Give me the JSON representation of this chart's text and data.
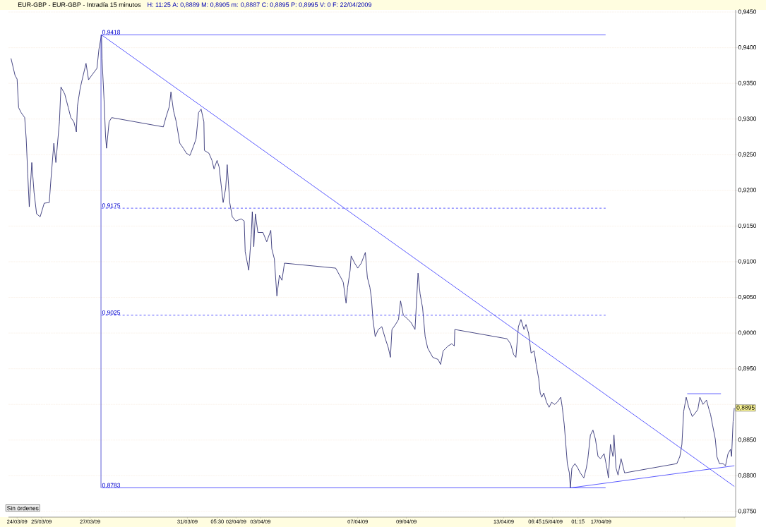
{
  "chart_data": {
    "type": "line",
    "title": "EUR-GBP - EUR-GBP - Intradía 15 minutos",
    "subtitle": "H: 11:25  A: 0,8889  M: 0,8905  m: 0,8887  C: 0,8895  P: 0,8995  V: 0  F: 22/04/2009",
    "xlim": [
      "2009-03-23T15:30",
      "2009-04-22T12:45"
    ],
    "ylim": [
      0.8742,
      0.9453
    ],
    "xticks": [
      {
        "value": "2009-03-24",
        "label": "24/03/09"
      },
      {
        "value": "2009-03-25",
        "label": "25/03/09"
      },
      {
        "value": "2009-03-27",
        "label": "27/03/09"
      },
      {
        "value": "2009-03-31",
        "label": "31/03/09"
      },
      {
        "value": "2009-04-01T05:30",
        "label": "05:30"
      },
      {
        "value": "2009-04-02",
        "label": "02/04/09"
      },
      {
        "value": "2009-04-03",
        "label": "03/04/09"
      },
      {
        "value": "2009-04-07",
        "label": "07/04/09"
      },
      {
        "value": "2009-04-09",
        "label": "09/04/09"
      },
      {
        "value": "2009-04-13",
        "label": "13/04/09"
      },
      {
        "value": "2009-04-14T06:45",
        "label": "06:45"
      },
      {
        "value": "2009-04-15",
        "label": "15/04/09"
      },
      {
        "value": "2009-04-16T01:15",
        "label": "01:15"
      },
      {
        "value": "2009-04-17",
        "label": "17/04/09"
      },
      {
        "value": "2009-04-20T10:00",
        "label": null
      }
    ],
    "yticks": [
      {
        "value": 0.875,
        "label": "0,8750"
      },
      {
        "value": 0.88,
        "label": "0,8800"
      },
      {
        "value": 0.885,
        "label": "0,8850"
      },
      {
        "value": 0.89,
        "label": null
      },
      {
        "value": 0.895,
        "label": "0,8950"
      },
      {
        "value": 0.9,
        "label": "0,9000"
      },
      {
        "value": 0.905,
        "label": "0,9050"
      },
      {
        "value": 0.91,
        "label": "0,9100"
      },
      {
        "value": 0.915,
        "label": "0,9150"
      },
      {
        "value": 0.92,
        "label": "0,9200"
      },
      {
        "value": 0.925,
        "label": "0,9250"
      },
      {
        "value": 0.93,
        "label": "0,9300"
      },
      {
        "value": 0.935,
        "label": "0,9350"
      },
      {
        "value": 0.94,
        "label": "0,9400"
      },
      {
        "value": 0.945,
        "label": "0,9450"
      }
    ],
    "grid": "y",
    "marker": "none",
    "series": [
      {
        "color": "#1a1a66",
        "x": [
          "2009-03-23T18:00",
          "2009-03-23T22:00",
          "2009-03-24T00:00",
          "2009-03-24T01:30",
          "2009-03-24T04:00",
          "2009-03-24T07:30",
          "2009-03-24T09:00",
          "2009-03-24T10:30",
          "2009-03-24T12:00",
          "2009-03-24T14:30",
          "2009-03-24T16:45",
          "2009-03-24T19:15",
          "2009-03-24T22:45",
          "2009-03-25T02:45",
          "2009-03-25T07:45",
          "2009-03-25T09:15",
          "2009-03-25T12:15",
          "2009-03-25T14:15",
          "2009-03-25T17:45",
          "2009-03-25T19:15",
          "2009-03-25T23:00",
          "2009-03-26T02:30",
          "2009-03-26T05:00",
          "2009-03-26T08:00",
          "2009-03-26T10:30",
          "2009-03-26T11:30",
          "2009-03-26T14:00",
          "2009-03-26T15:30",
          "2009-03-26T20:00",
          "2009-03-26T22:30",
          "2009-03-27T01:30",
          "2009-03-27T06:45",
          "2009-03-27T08:45",
          "2009-03-27T11:15",
          "2009-03-27T11:45",
          "2009-03-27T13:45",
          "2009-03-27T15:15",
          "2009-03-27T16:15",
          "2009-03-27T18:45",
          "2009-03-27T21:15",
          "2009-03-30T00:15",
          "2009-03-30T02:45",
          "2009-03-30T06:15",
          "2009-03-30T07:45",
          "2009-03-30T10:15",
          "2009-03-30T13:00",
          "2009-03-30T16:30",
          "2009-03-30T20:00",
          "2009-03-30T23:00",
          "2009-03-31T02:30",
          "2009-03-31T06:00",
          "2009-03-31T08:30",
          "2009-03-31T11:00",
          "2009-03-31T13:30",
          "2009-03-31T16:15",
          "2009-03-31T16:45",
          "2009-03-31T21:15",
          "2009-04-01T00:15",
          "2009-04-01T02:15",
          "2009-04-01T05:15",
          "2009-04-01T07:15",
          "2009-04-01T11:15",
          "2009-04-01T13:45",
          "2009-04-01T15:15",
          "2009-04-01T17:45",
          "2009-04-01T20:15",
          "2009-04-01T23:45",
          "2009-04-02T05:00",
          "2009-04-02T08:00",
          "2009-04-02T09:00",
          "2009-04-02T12:30",
          "2009-04-02T15:00",
          "2009-04-02T16:00",
          "2009-04-02T17:30",
          "2009-04-02T19:00",
          "2009-04-02T21:30",
          "2009-04-03T02:30",
          "2009-04-03T06:15",
          "2009-04-03T10:15",
          "2009-04-03T11:15",
          "2009-04-03T13:45",
          "2009-04-03T16:15",
          "2009-04-03T18:45",
          "2009-04-03T21:15",
          "2009-04-03T23:45",
          "2009-04-06T02:15",
          "2009-04-06T07:15",
          "2009-04-06T09:45",
          "2009-04-06T12:30",
          "2009-04-06T14:00",
          "2009-04-06T16:30",
          "2009-04-06T17:30",
          "2009-04-06T21:00",
          "2009-04-07T00:00",
          "2009-04-07T03:30",
          "2009-04-07T07:30",
          "2009-04-07T09:30",
          "2009-04-07T12:00",
          "2009-04-07T13:30",
          "2009-04-07T15:00",
          "2009-04-07T17:15",
          "2009-04-07T20:15",
          "2009-04-07T23:45",
          "2009-04-08T03:15",
          "2009-04-08T06:15",
          "2009-04-08T08:15",
          "2009-04-08T09:45",
          "2009-04-08T13:15",
          "2009-04-08T16:15",
          "2009-04-08T18:15",
          "2009-04-08T21:00",
          "2009-04-08T23:30",
          "2009-04-09T04:30",
          "2009-04-09T08:30",
          "2009-04-09T11:30",
          "2009-04-09T13:30",
          "2009-04-09T16:00",
          "2009-04-09T18:30",
          "2009-04-09T21:00",
          "2009-04-10T02:00",
          "2009-04-10T07:15",
          "2009-04-10T09:45",
          "2009-04-10T12:15",
          "2009-04-10T17:15",
          "2009-04-10T20:45",
          "2009-04-10T23:15",
          "2009-04-10T23:45",
          "2009-04-13T03:15",
          "2009-04-13T06:45",
          "2009-04-13T09:45",
          "2009-04-13T12:00",
          "2009-04-13T14:30",
          "2009-04-13T17:00",
          "2009-04-13T20:00",
          "2009-04-13T22:00",
          "2009-04-14T00:30",
          "2009-04-14T03:00",
          "2009-04-14T06:00",
          "2009-04-14T08:00",
          "2009-04-14T10:30",
          "2009-04-14T12:00",
          "2009-04-14T13:30",
          "2009-04-14T15:30",
          "2009-04-14T18:15",
          "2009-04-14T20:45",
          "2009-04-14T23:15",
          "2009-04-15T02:15",
          "2009-04-15T04:45",
          "2009-04-15T08:15",
          "2009-04-15T09:45",
          "2009-04-15T11:45",
          "2009-04-15T13:15",
          "2009-04-15T14:45",
          "2009-04-15T16:45",
          "2009-04-15T17:45",
          "2009-04-15T19:15",
          "2009-04-15T22:15",
          "2009-04-16T01:00",
          "2009-04-16T03:30",
          "2009-04-16T07:00",
          "2009-04-16T09:30",
          "2009-04-16T11:00",
          "2009-04-16T13:30",
          "2009-04-16T16:00",
          "2009-04-16T18:30",
          "2009-04-16T21:00",
          "2009-04-16T23:30",
          "2009-04-17T03:00",
          "2009-04-17T05:45",
          "2009-04-17T07:15",
          "2009-04-17T09:15",
          "2009-04-17T11:45",
          "2009-04-17T12:45",
          "2009-04-17T14:45",
          "2009-04-17T16:45",
          "2009-04-17T19:45",
          "2009-04-17T23:15",
          "2009-04-20T02:45",
          "2009-04-20T05:45",
          "2009-04-20T07:45",
          "2009-04-20T09:30",
          "2009-04-20T12:00",
          "2009-04-20T14:30",
          "2009-04-20T18:00",
          "2009-04-20T21:00",
          "2009-04-20T23:30",
          "2009-04-21T01:30",
          "2009-04-21T04:30",
          "2009-04-21T08:00",
          "2009-04-21T10:30",
          "2009-04-21T12:00",
          "2009-04-21T14:00",
          "2009-04-21T16:45",
          "2009-04-21T18:15",
          "2009-04-21T20:45",
          "2009-04-22T00:15",
          "2009-04-22T02:45",
          "2009-04-22T05:15",
          "2009-04-22T07:45",
          "2009-04-22T08:45",
          "2009-04-22T10:15",
          "2009-04-22T11:25"
        ],
        "values": [
          0.9385,
          0.9361,
          0.9356,
          0.9316,
          0.9309,
          0.9302,
          0.9272,
          0.9223,
          0.9177,
          0.9239,
          0.9197,
          0.9167,
          0.9163,
          0.9182,
          0.9183,
          0.9213,
          0.9266,
          0.9239,
          0.9296,
          0.9345,
          0.9335,
          0.9316,
          0.9302,
          0.9296,
          0.9282,
          0.9318,
          0.9341,
          0.9351,
          0.9378,
          0.9355,
          0.9361,
          0.9371,
          0.9398,
          0.9418,
          0.9385,
          0.9328,
          0.9276,
          0.9259,
          0.9296,
          0.9302,
          0.9289,
          0.9302,
          0.9318,
          0.9338,
          0.9312,
          0.9296,
          0.9266,
          0.9259,
          0.9252,
          0.9249,
          0.9262,
          0.9272,
          0.9309,
          0.9314,
          0.9296,
          0.9256,
          0.9252,
          0.9242,
          0.923,
          0.9242,
          0.9233,
          0.9183,
          0.9203,
          0.9236,
          0.9183,
          0.9163,
          0.9157,
          0.916,
          0.9157,
          0.9114,
          0.9088,
          0.9138,
          0.917,
          0.9121,
          0.9167,
          0.9141,
          0.9141,
          0.9128,
          0.9144,
          0.9118,
          0.9104,
          0.9052,
          0.9081,
          0.9074,
          0.9098,
          0.9091,
          0.9078,
          0.9071,
          0.9042,
          0.9064,
          0.9088,
          0.9108,
          0.9098,
          0.9091,
          0.9098,
          0.9113,
          0.9078,
          0.9064,
          0.9049,
          0.9019,
          0.8995,
          0.9005,
          0.9009,
          0.8992,
          0.8979,
          0.8966,
          0.9005,
          0.9012,
          0.9019,
          0.9045,
          0.9025,
          0.9022,
          0.9015,
          0.9005,
          0.9084,
          0.9055,
          0.9035,
          0.8995,
          0.8979,
          0.8966,
          0.8963,
          0.8956,
          0.8975,
          0.8982,
          0.8985,
          0.8982,
          0.9005,
          0.8992,
          0.8985,
          0.897,
          0.8966,
          0.9009,
          0.9019,
          0.9005,
          0.9012,
          0.9,
          0.8972,
          0.8975,
          0.8956,
          0.8936,
          0.8916,
          0.891,
          0.8916,
          0.8903,
          0.8896,
          0.8903,
          0.89,
          0.8903,
          0.891,
          0.8896,
          0.8871,
          0.8844,
          0.8817,
          0.8804,
          0.8783,
          0.8811,
          0.8817,
          0.8811,
          0.8804,
          0.8797,
          0.8811,
          0.8824,
          0.8857,
          0.8864,
          0.8851,
          0.8827,
          0.8824,
          0.8831,
          0.8811,
          0.8797,
          0.8844,
          0.8827,
          0.8857,
          0.8811,
          0.8801,
          0.8824,
          0.8804,
          0.8817,
          0.8827,
          0.8844,
          0.889,
          0.891,
          0.8896,
          0.8883,
          0.8888,
          0.8893,
          0.891,
          0.89,
          0.8906,
          0.8893,
          0.8886,
          0.8871,
          0.8851,
          0.8827,
          0.8817,
          0.8817,
          0.8814,
          0.8831,
          0.8837,
          0.8827,
          0.8876,
          0.8895
        ]
      },
      {
        "color": "#3333ff",
        "x": [
          "2009-03-27T11:15",
          "2009-04-17T04:30"
        ],
        "values": [
          0.9418,
          0.9418
        ]
      },
      {
        "color": "#3333ff",
        "x": [
          "2009-03-27T11:15",
          "2009-04-17T04:30"
        ],
        "values": [
          0.9175,
          0.9175
        ],
        "line_style": "dashed"
      },
      {
        "color": "#3333ff",
        "x": [
          "2009-03-27T11:15",
          "2009-04-17T04:30"
        ],
        "values": [
          0.9025,
          0.9025
        ],
        "line_style": "dashed"
      },
      {
        "color": "#3333ff",
        "x": [
          "2009-03-27T11:15",
          "2009-04-17T04:30"
        ],
        "values": [
          0.8783,
          0.8783
        ]
      },
      {
        "color": "#3333cc",
        "x": [
          "2009-03-27T10:45",
          "2009-03-27T10:45"
        ],
        "values": [
          0.9418,
          0.8783
        ]
      },
      {
        "color": "#3333ff",
        "x": [
          "2009-03-27T11:15",
          "2009-04-22T11:30"
        ],
        "values": [
          0.9418,
          0.8785
        ]
      },
      {
        "color": "#3333ff",
        "x": [
          "2009-04-15T17:45",
          "2009-04-22T11:30"
        ],
        "values": [
          0.8783,
          0.8814
        ]
      },
      {
        "color": "#3333ff",
        "x": [
          "2009-04-20T13:00",
          "2009-04-21T22:15"
        ],
        "values": [
          0.8915,
          0.8915
        ]
      }
    ],
    "annotations": [
      {
        "text": "0.9418",
        "x": "2009-03-27T11:15",
        "y": 0.9418
      },
      {
        "text": "0.9175",
        "x": "2009-03-27T11:15",
        "y": 0.9175
      },
      {
        "text": "0.9025",
        "x": "2009-03-27T11:15",
        "y": 0.9025
      },
      {
        "text": "0.8783",
        "x": "2009-03-27T11:15",
        "y": 0.8783
      },
      {
        "text": "0,8895",
        "x": "2009-04-22T12:45",
        "y": 0.8895
      },
      "Sin órdenes"
    ]
  }
}
